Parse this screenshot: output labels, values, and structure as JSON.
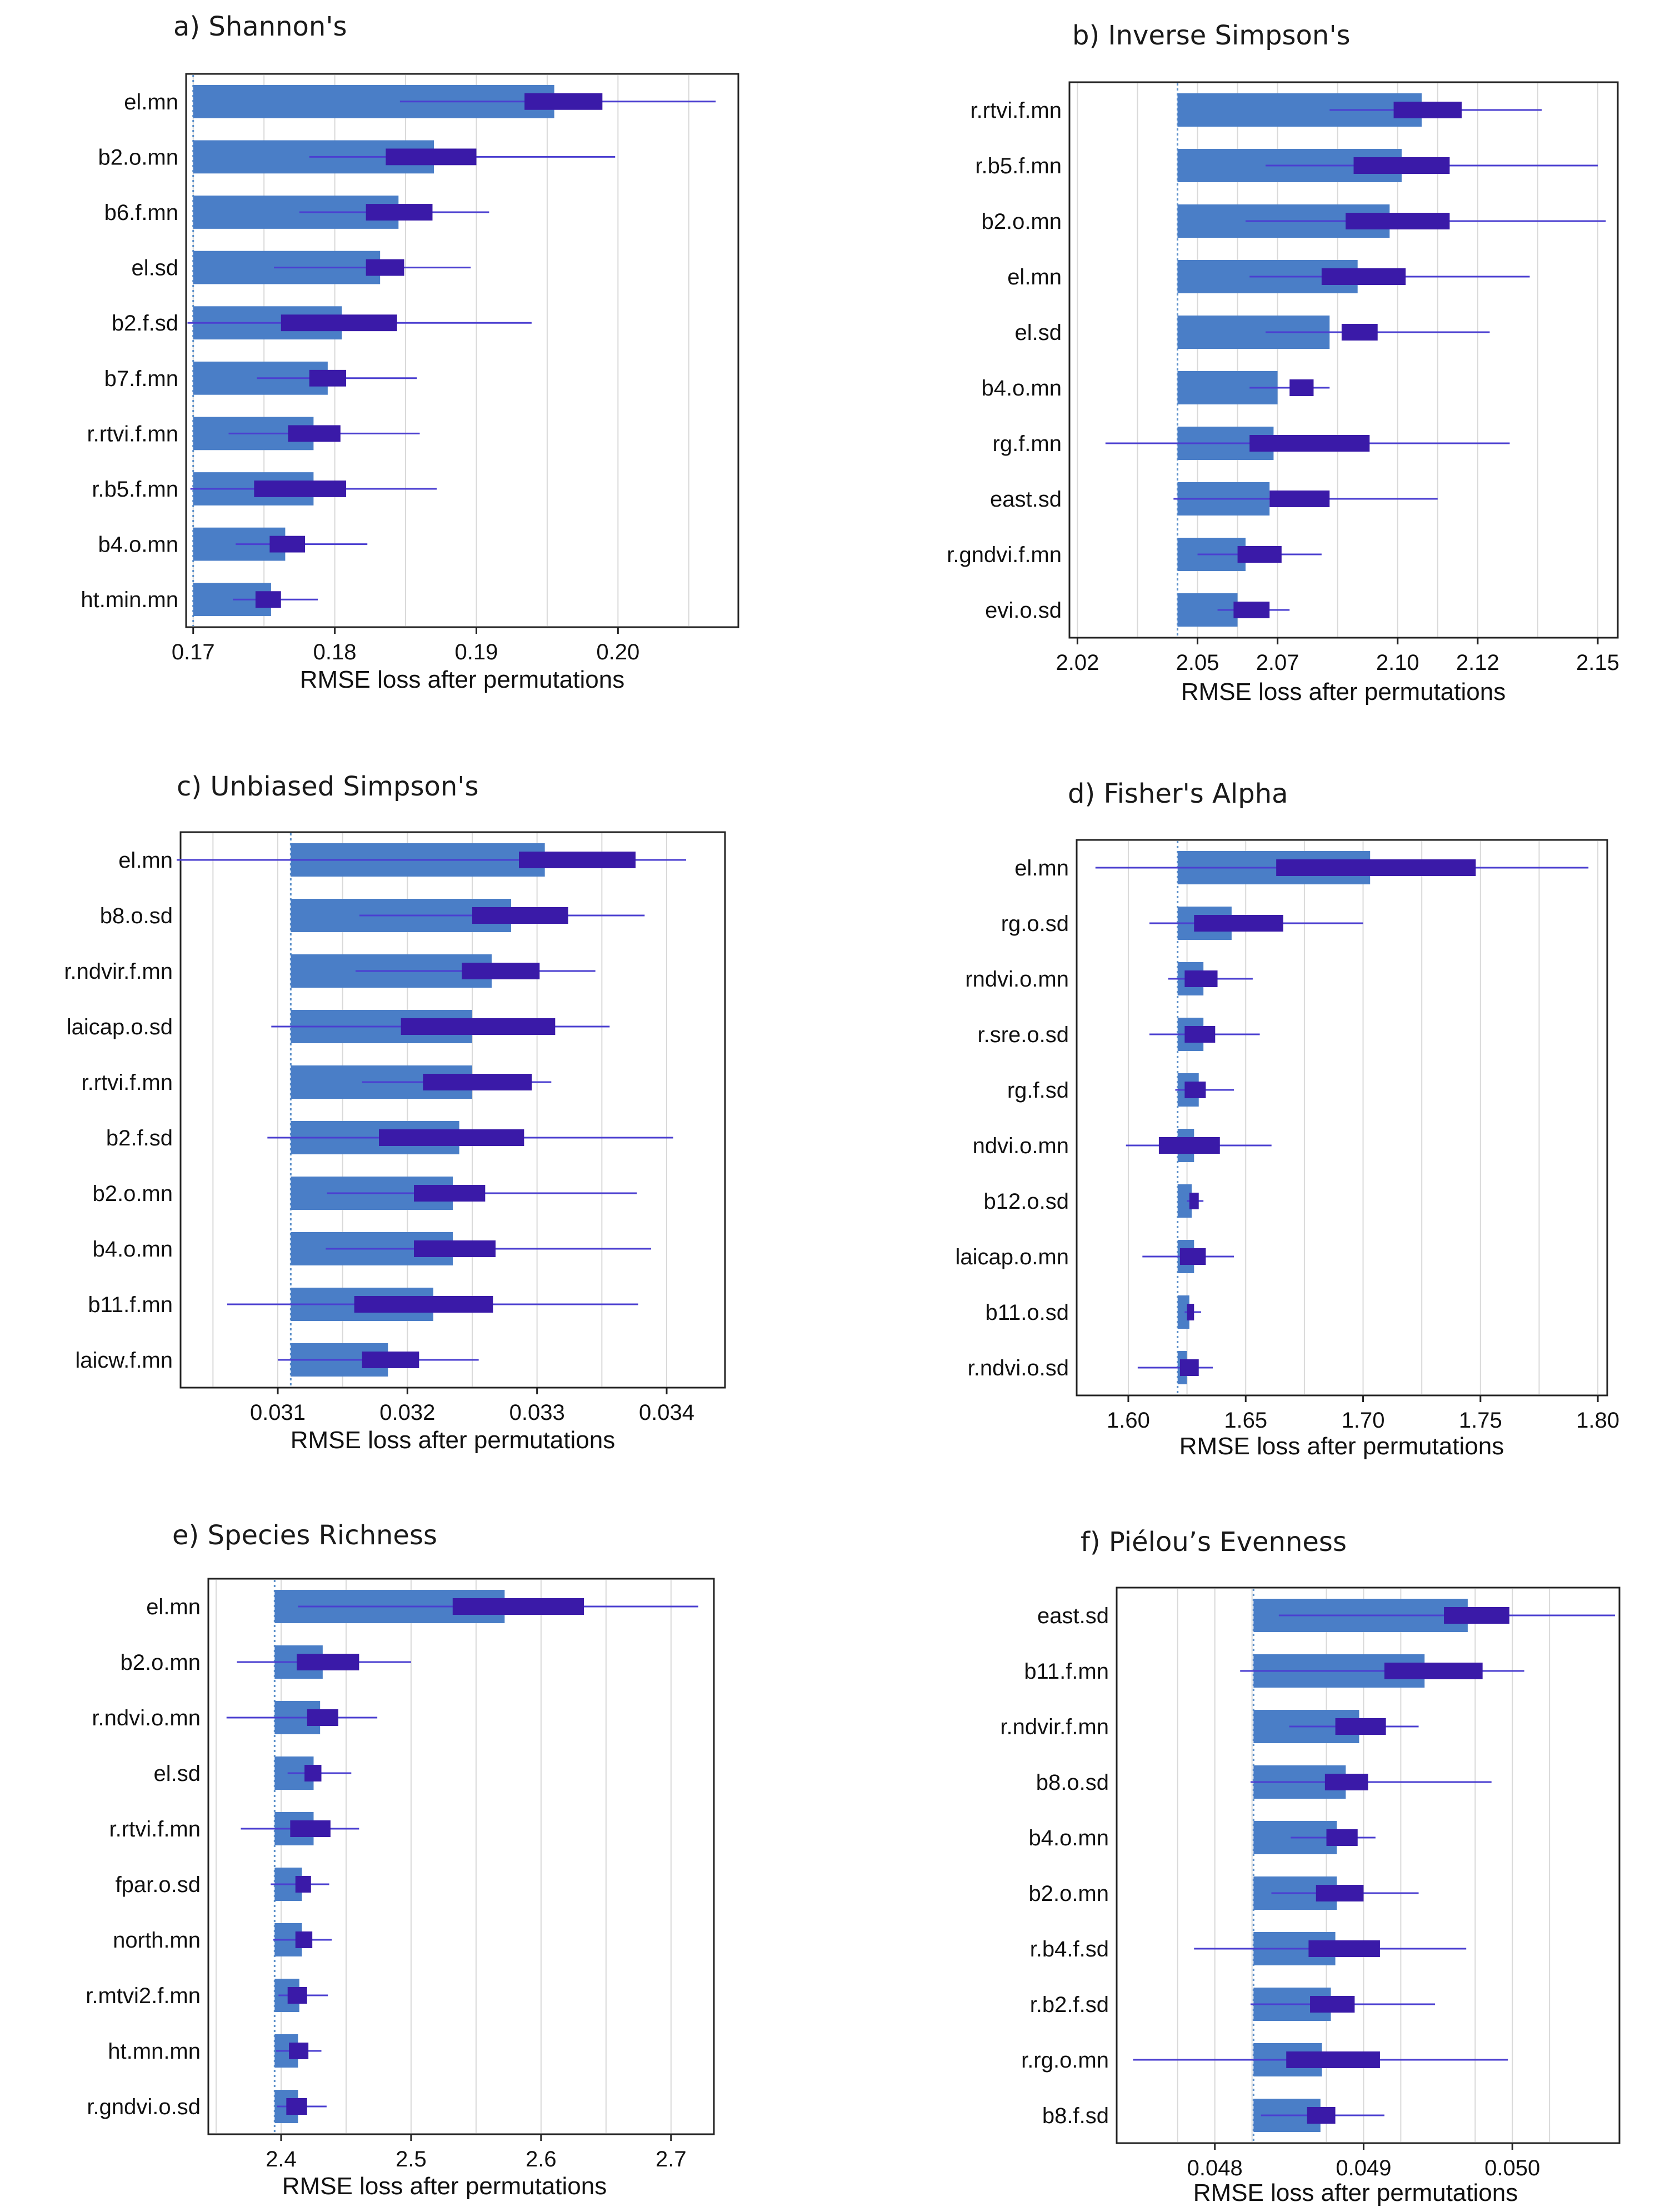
{
  "colors": {
    "bar": "#4a7ec7",
    "box": "#3a1aa8",
    "whisker": "#4b3fd0",
    "grid": "#d9d9d9",
    "baseline": "#5b8fc9",
    "frame": "#222222"
  },
  "chart_data": [
    {
      "type": "bar",
      "panel": "a",
      "title": "a) Shannon's",
      "xlabel": "RMSE loss after permutations",
      "xlim": [
        0.1695,
        0.2085
      ],
      "xticks": [
        0.17,
        0.18,
        0.19,
        0.2
      ],
      "xtick_labels": [
        "0.17",
        "0.18",
        "0.19",
        "0.20"
      ],
      "gridlines": [
        0.165,
        0.175,
        0.185,
        0.195,
        0.205
      ],
      "baseline": 0.17,
      "categories": [
        "el.mn",
        "b2.o.mn",
        "b6.f.mn",
        "el.sd",
        "b2.f.sd",
        "b7.f.mn",
        "r.rtvi.f.mn",
        "r.b5.f.mn",
        "b4.o.mn",
        "ht.min.mn"
      ],
      "values": [
        0.1955,
        0.187,
        0.1845,
        0.1832,
        0.1805,
        0.1795,
        0.1785,
        0.1785,
        0.1765,
        0.1755
      ],
      "box_low": [
        0.1934,
        0.1836,
        0.1822,
        0.1822,
        0.1762,
        0.1782,
        0.1767,
        0.1743,
        0.1754,
        0.1744
      ],
      "box_high": [
        0.1989,
        0.19,
        0.1869,
        0.1849,
        0.1844,
        0.1808,
        0.1804,
        0.1808,
        0.1779,
        0.1762
      ],
      "whisker_low": [
        0.1846,
        0.1782,
        0.1775,
        0.1757,
        0.1696,
        0.1745,
        0.1725,
        0.1698,
        0.173,
        0.1728
      ],
      "whisker_high": [
        0.2069,
        0.1998,
        0.1909,
        0.1896,
        0.1939,
        0.1858,
        0.186,
        0.1872,
        0.1823,
        0.1788
      ]
    },
    {
      "type": "bar",
      "panel": "b",
      "title": "b) Inverse Simpson's",
      "xlabel": "RMSE loss after permutations",
      "xlim": [
        2.018,
        2.155
      ],
      "xticks": [
        2.02,
        2.05,
        2.07,
        2.1,
        2.12,
        2.15
      ],
      "xtick_labels": [
        "2.02",
        "2.05",
        "2.07",
        "2.10",
        "2.12",
        "2.15"
      ],
      "gridlines": [
        2.035,
        2.06,
        2.085,
        2.11,
        2.135
      ],
      "baseline": 2.045,
      "categories": [
        "r.rtvi.f.mn",
        "r.b5.f.mn",
        "b2.o.mn",
        "el.mn",
        "el.sd",
        "b4.o.mn",
        "rg.f.mn",
        "east.sd",
        "r.gndvi.f.mn",
        "evi.o.sd"
      ],
      "values": [
        2.106,
        2.101,
        2.098,
        2.09,
        2.083,
        2.07,
        2.069,
        2.068,
        2.062,
        2.06
      ],
      "box_low": [
        2.099,
        2.089,
        2.087,
        2.081,
        2.086,
        2.073,
        2.063,
        2.068,
        2.06,
        2.059
      ],
      "box_high": [
        2.116,
        2.113,
        2.113,
        2.102,
        2.095,
        2.079,
        2.093,
        2.083,
        2.071,
        2.068
      ],
      "whisker_low": [
        2.083,
        2.067,
        2.062,
        2.063,
        2.067,
        2.063,
        2.027,
        2.044,
        2.05,
        2.055
      ],
      "whisker_high": [
        2.136,
        2.15,
        2.152,
        2.133,
        2.123,
        2.083,
        2.128,
        2.11,
        2.081,
        2.073
      ]
    },
    {
      "type": "bar",
      "panel": "c",
      "title": "c) Unbiased Simpson's",
      "xlabel": "RMSE loss after permutations",
      "xlim": [
        0.03025,
        0.03445
      ],
      "xticks": [
        0.031,
        0.032,
        0.033,
        0.034
      ],
      "xtick_labels": [
        "0.031",
        "0.032",
        "0.033",
        "0.034"
      ],
      "gridlines": [
        0.0305,
        0.0315,
        0.0325,
        0.0335
      ],
      "baseline": 0.0311,
      "categories": [
        "el.mn",
        "b8.o.sd",
        "r.ndvir.f.mn",
        "laicap.o.sd",
        "r.rtvi.f.mn",
        "b2.f.sd",
        "b2.o.mn",
        "b4.o.mn",
        "b11.f.mn",
        "laicw.f.mn"
      ],
      "values": [
        0.03306,
        0.0328,
        0.03265,
        0.0325,
        0.0325,
        0.0324,
        0.03235,
        0.03235,
        0.0322,
        0.03185
      ],
      "box_low": [
        0.03286,
        0.0325,
        0.03242,
        0.03195,
        0.03212,
        0.03178,
        0.03205,
        0.03205,
        0.03159,
        0.03165
      ],
      "box_high": [
        0.03376,
        0.03324,
        0.03302,
        0.03314,
        0.03296,
        0.0329,
        0.0326,
        0.03268,
        0.03266,
        0.03209
      ],
      "whisker_low": [
        0.03022,
        0.03163,
        0.0316,
        0.03095,
        0.03165,
        0.03092,
        0.03138,
        0.03137,
        0.03061,
        0.031
      ],
      "whisker_high": [
        0.03415,
        0.03383,
        0.03345,
        0.03356,
        0.03311,
        0.03405,
        0.03377,
        0.03388,
        0.03378,
        0.03255
      ]
    },
    {
      "type": "bar",
      "panel": "d",
      "title": "d) Fisher's Alpha",
      "xlabel": "RMSE loss after permutations",
      "xlim": [
        1.578,
        1.804
      ],
      "xticks": [
        1.6,
        1.65,
        1.7,
        1.75,
        1.8
      ],
      "xtick_labels": [
        "1.60",
        "1.65",
        "1.70",
        "1.75",
        "1.80"
      ],
      "gridlines": [
        1.625,
        1.675,
        1.725,
        1.775
      ],
      "baseline": 1.621,
      "categories": [
        "el.mn",
        "rg.o.sd",
        "rndvi.o.mn",
        "r.sre.o.sd",
        "rg.f.sd",
        "ndvi.o.mn",
        "b12.o.sd",
        "laicap.o.mn",
        "b11.o.sd",
        "r.ndvi.o.sd"
      ],
      "values": [
        1.703,
        1.644,
        1.632,
        1.632,
        1.63,
        1.628,
        1.627,
        1.628,
        1.626,
        1.625
      ],
      "box_low": [
        1.663,
        1.628,
        1.624,
        1.624,
        1.624,
        1.613,
        1.626,
        1.622,
        1.625,
        1.622
      ],
      "box_high": [
        1.748,
        1.666,
        1.638,
        1.637,
        1.633,
        1.639,
        1.63,
        1.633,
        1.628,
        1.63
      ],
      "whisker_low": [
        1.586,
        1.609,
        1.617,
        1.609,
        1.62,
        1.599,
        1.625,
        1.606,
        1.624,
        1.604
      ],
      "whisker_high": [
        1.796,
        1.7,
        1.653,
        1.656,
        1.645,
        1.661,
        1.632,
        1.645,
        1.631,
        1.636
      ]
    },
    {
      "type": "bar",
      "panel": "e",
      "title": "e) Species Richness",
      "xlabel": "RMSE loss after permutations",
      "xlim": [
        2.344,
        2.733
      ],
      "xticks": [
        2.4,
        2.5,
        2.6,
        2.7
      ],
      "xtick_labels": [
        "2.4",
        "2.5",
        "2.6",
        "2.7"
      ],
      "gridlines": [
        2.35,
        2.45,
        2.55,
        2.65
      ],
      "baseline": 2.395,
      "categories": [
        "el.mn",
        "b2.o.mn",
        "r.ndvi.o.mn",
        "el.sd",
        "r.rtvi.f.mn",
        "fpar.o.sd",
        "north.mn",
        "r.mtvi2.f.mn",
        "ht.mn.mn",
        "r.gndvi.o.sd"
      ],
      "values": [
        2.572,
        2.432,
        2.43,
        2.425,
        2.425,
        2.416,
        2.416,
        2.414,
        2.413,
        2.413
      ],
      "box_low": [
        2.532,
        2.412,
        2.42,
        2.418,
        2.407,
        2.411,
        2.411,
        2.405,
        2.406,
        2.404
      ],
      "box_high": [
        2.633,
        2.46,
        2.444,
        2.431,
        2.438,
        2.423,
        2.424,
        2.42,
        2.421,
        2.42
      ],
      "whisker_low": [
        2.413,
        2.366,
        2.358,
        2.405,
        2.369,
        2.392,
        2.394,
        2.398,
        2.396,
        2.397
      ],
      "whisker_high": [
        2.721,
        2.5,
        2.474,
        2.454,
        2.46,
        2.437,
        2.439,
        2.436,
        2.431,
        2.435
      ]
    },
    {
      "type": "bar",
      "panel": "f",
      "title": "f) Piélou’s Evenness",
      "xlabel": "RMSE loss after permutations",
      "xlim": [
        0.04734,
        0.05072
      ],
      "xticks": [
        0.048,
        0.049,
        0.05
      ],
      "xtick_labels": [
        "0.048",
        "0.049",
        "0.050"
      ],
      "gridlines": [
        0.04775,
        0.04825,
        0.04875,
        0.04925,
        0.04975,
        0.05025
      ],
      "baseline": 0.04826,
      "categories": [
        "east.sd",
        "b11.f.mn",
        "r.ndvir.f.mn",
        "b8.o.sd",
        "b4.o.mn",
        "b2.o.mn",
        "r.b4.f.sd",
        "r.b2.f.sd",
        "r.rg.o.mn",
        "b8.f.sd"
      ],
      "values": [
        0.0497,
        0.04941,
        0.04897,
        0.04888,
        0.04882,
        0.04882,
        0.04881,
        0.04878,
        0.04872,
        0.04871
      ],
      "box_low": [
        0.04954,
        0.04914,
        0.04881,
        0.04874,
        0.04875,
        0.04868,
        0.04863,
        0.04864,
        0.04848,
        0.04862
      ],
      "box_high": [
        0.04998,
        0.0498,
        0.04915,
        0.04903,
        0.04896,
        0.049,
        0.04911,
        0.04894,
        0.04911,
        0.04881
      ],
      "whisker_low": [
        0.04843,
        0.04817,
        0.0485,
        0.04824,
        0.04851,
        0.04838,
        0.04786,
        0.04824,
        0.04745,
        0.04831
      ],
      "whisker_high": [
        0.05069,
        0.05008,
        0.04937,
        0.04986,
        0.04908,
        0.04937,
        0.04969,
        0.04948,
        0.04997,
        0.04914
      ]
    }
  ]
}
